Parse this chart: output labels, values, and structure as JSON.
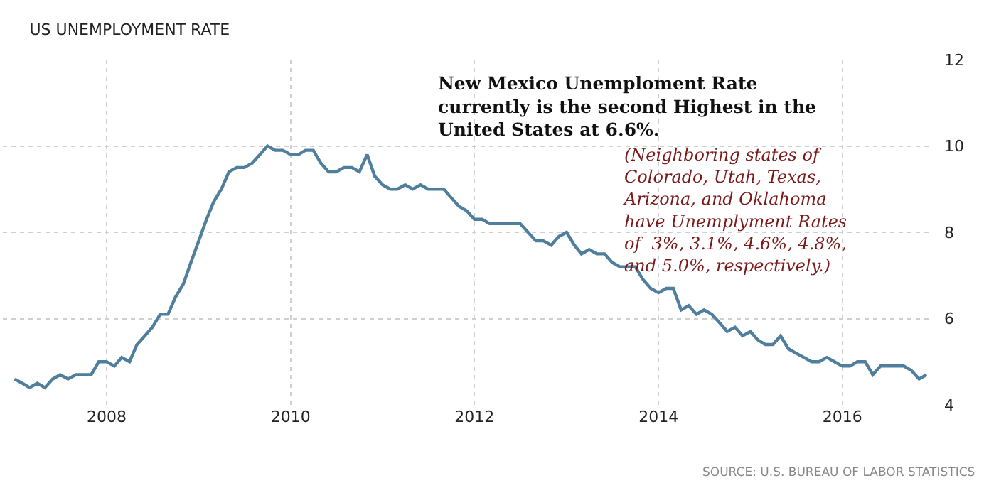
{
  "chart_data": {
    "type": "line",
    "title": "US UNEMPLOYMENT RATE",
    "x": [
      "2007-01",
      "2007-02",
      "2007-03",
      "2007-04",
      "2007-05",
      "2007-06",
      "2007-07",
      "2007-08",
      "2007-09",
      "2007-10",
      "2007-11",
      "2007-12",
      "2008-01",
      "2008-02",
      "2008-03",
      "2008-04",
      "2008-05",
      "2008-06",
      "2008-07",
      "2008-08",
      "2008-09",
      "2008-10",
      "2008-11",
      "2008-12",
      "2009-01",
      "2009-02",
      "2009-03",
      "2009-04",
      "2009-05",
      "2009-06",
      "2009-07",
      "2009-08",
      "2009-09",
      "2009-10",
      "2009-11",
      "2009-12",
      "2010-01",
      "2010-02",
      "2010-03",
      "2010-04",
      "2010-05",
      "2010-06",
      "2010-07",
      "2010-08",
      "2010-09",
      "2010-10",
      "2010-11",
      "2010-12",
      "2011-01",
      "2011-02",
      "2011-03",
      "2011-04",
      "2011-05",
      "2011-06",
      "2011-07",
      "2011-08",
      "2011-09",
      "2011-10",
      "2011-11",
      "2011-12",
      "2012-01",
      "2012-02",
      "2012-03",
      "2012-04",
      "2012-05",
      "2012-06",
      "2012-07",
      "2012-08",
      "2012-09",
      "2012-10",
      "2012-11",
      "2012-12",
      "2013-01",
      "2013-02",
      "2013-03",
      "2013-04",
      "2013-05",
      "2013-06",
      "2013-07",
      "2013-08",
      "2013-09",
      "2013-10",
      "2013-11",
      "2013-12",
      "2014-01",
      "2014-02",
      "2014-03",
      "2014-04",
      "2014-05",
      "2014-06",
      "2014-07",
      "2014-08",
      "2014-09",
      "2014-10",
      "2014-11",
      "2014-12",
      "2015-01",
      "2015-02",
      "2015-03",
      "2015-04",
      "2015-05",
      "2015-06",
      "2015-07",
      "2015-08",
      "2015-09",
      "2015-10",
      "2015-11",
      "2015-12",
      "2016-01",
      "2016-02",
      "2016-03",
      "2016-04",
      "2016-05",
      "2016-06",
      "2016-07",
      "2016-08",
      "2016-09",
      "2016-10",
      "2016-11",
      "2016-12"
    ],
    "series": [
      {
        "color": "#4f7f9c",
        "values": [
          4.6,
          4.5,
          4.4,
          4.5,
          4.4,
          4.6,
          4.7,
          4.6,
          4.7,
          4.7,
          4.7,
          5.0,
          5.0,
          4.9,
          5.1,
          5.0,
          5.4,
          5.6,
          5.8,
          6.1,
          6.1,
          6.5,
          6.8,
          7.3,
          7.8,
          8.3,
          8.7,
          9.0,
          9.4,
          9.5,
          9.5,
          9.6,
          9.8,
          10.0,
          9.9,
          9.9,
          9.8,
          9.8,
          9.9,
          9.9,
          9.6,
          9.4,
          9.4,
          9.5,
          9.5,
          9.4,
          9.8,
          9.3,
          9.1,
          9.0,
          9.0,
          9.1,
          9.0,
          9.1,
          9.0,
          9.0,
          9.0,
          8.8,
          8.6,
          8.5,
          8.3,
          8.3,
          8.2,
          8.2,
          8.2,
          8.2,
          8.2,
          8.0,
          7.8,
          7.8,
          7.7,
          7.9,
          8.0,
          7.7,
          7.5,
          7.6,
          7.5,
          7.5,
          7.3,
          7.2,
          7.2,
          7.2,
          6.9,
          6.7,
          6.6,
          6.7,
          6.7,
          6.2,
          6.3,
          6.1,
          6.2,
          6.1,
          5.9,
          5.7,
          5.8,
          5.6,
          5.7,
          5.5,
          5.4,
          5.4,
          5.6,
          5.3,
          5.2,
          5.1,
          5.0,
          5.0,
          5.1,
          5.0,
          4.9,
          4.9,
          5.0,
          5.0,
          4.7,
          4.9,
          4.9,
          4.9,
          4.9,
          4.8,
          4.6,
          4.7
        ]
      }
    ],
    "xlim": [
      "2006-11-15",
      "2016-12-20"
    ],
    "xticks": [
      {
        "value": "2008-01-01",
        "label": "2008"
      },
      {
        "value": "2010-01-01",
        "label": "2010"
      },
      {
        "value": "2012-01-01",
        "label": "2012"
      },
      {
        "value": "2014-01-01",
        "label": "2014"
      },
      {
        "value": "2016-01-01",
        "label": "2016"
      }
    ],
    "ylim": [
      4,
      12
    ],
    "yticks": [
      4,
      6,
      8,
      10,
      12
    ],
    "grid": true,
    "marker": "none",
    "line_style": "solid",
    "annotations": [
      "New Mexico Unemploment Rate\ncurrently is the second Highest in the\nUnited States at 6.6%.",
      "(Neighboring states of\nColorado, Utah, Texas,\nArizona, and Oklahoma\nhave Unemplyment Rates\nof  3%, 3.1%, 4.6%, 4.8%,\nand 5.0%, respectively.)",
      "SOURCE: U.S. BUREAU OF LABOR STATISTICS"
    ]
  }
}
